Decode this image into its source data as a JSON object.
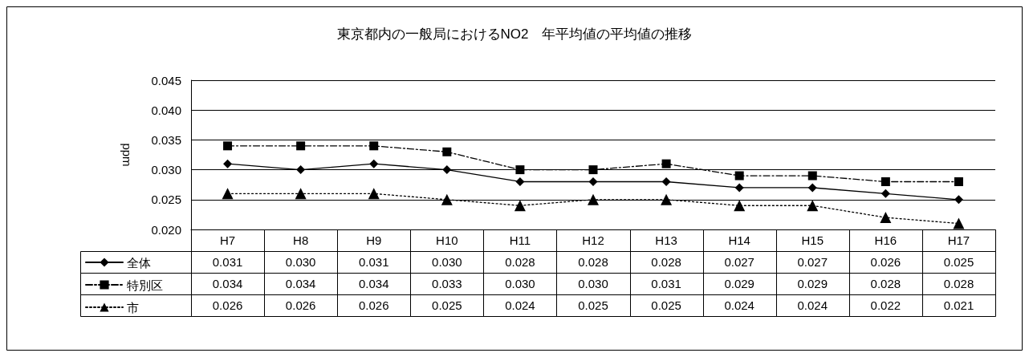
{
  "chart_data": {
    "type": "line",
    "title": "東京都内の一般局におけるNO2　年平均値の平均値の推移",
    "ylabel": "ppm",
    "categories": [
      "H7",
      "H8",
      "H9",
      "H10",
      "H11",
      "H12",
      "H13",
      "H14",
      "H15",
      "H16",
      "H17"
    ],
    "series": [
      {
        "name": "全体",
        "color": "#000000",
        "marker": "diamond",
        "line_style": "solid",
        "values": [
          0.031,
          0.03,
          0.031,
          0.03,
          0.028,
          0.028,
          0.028,
          0.027,
          0.027,
          0.026,
          0.025
        ],
        "value_labels": [
          "0.031",
          "0.030",
          "0.031",
          "0.030",
          "0.028",
          "0.028",
          "0.028",
          "0.027",
          "0.027",
          "0.026",
          "0.025"
        ]
      },
      {
        "name": "特別区",
        "color": "#000000",
        "marker": "square",
        "line_style": "dashed",
        "values": [
          0.034,
          0.034,
          0.034,
          0.033,
          0.03,
          0.03,
          0.031,
          0.029,
          0.029,
          0.028,
          0.028
        ],
        "value_labels": [
          "0.034",
          "0.034",
          "0.034",
          "0.033",
          "0.030",
          "0.030",
          "0.031",
          "0.029",
          "0.029",
          "0.028",
          "0.028"
        ]
      },
      {
        "name": "市",
        "color": "#000000",
        "marker": "triangle",
        "line_style": "dotted",
        "values": [
          0.026,
          0.026,
          0.026,
          0.025,
          0.024,
          0.025,
          0.025,
          0.024,
          0.024,
          0.022,
          0.021
        ],
        "value_labels": [
          "0.026",
          "0.026",
          "0.026",
          "0.025",
          "0.024",
          "0.025",
          "0.025",
          "0.024",
          "0.024",
          "0.022",
          "0.021"
        ]
      }
    ],
    "ylim": [
      0.02,
      0.045
    ],
    "yticks": [
      {
        "value": 0.02,
        "label": "0.020"
      },
      {
        "value": 0.025,
        "label": "0.025"
      },
      {
        "value": 0.03,
        "label": "0.030"
      },
      {
        "value": 0.035,
        "label": "0.035"
      },
      {
        "value": 0.04,
        "label": "0.040"
      },
      {
        "value": 0.045,
        "label": "0.045"
      }
    ],
    "grid": "y",
    "legend": "bottom left"
  }
}
